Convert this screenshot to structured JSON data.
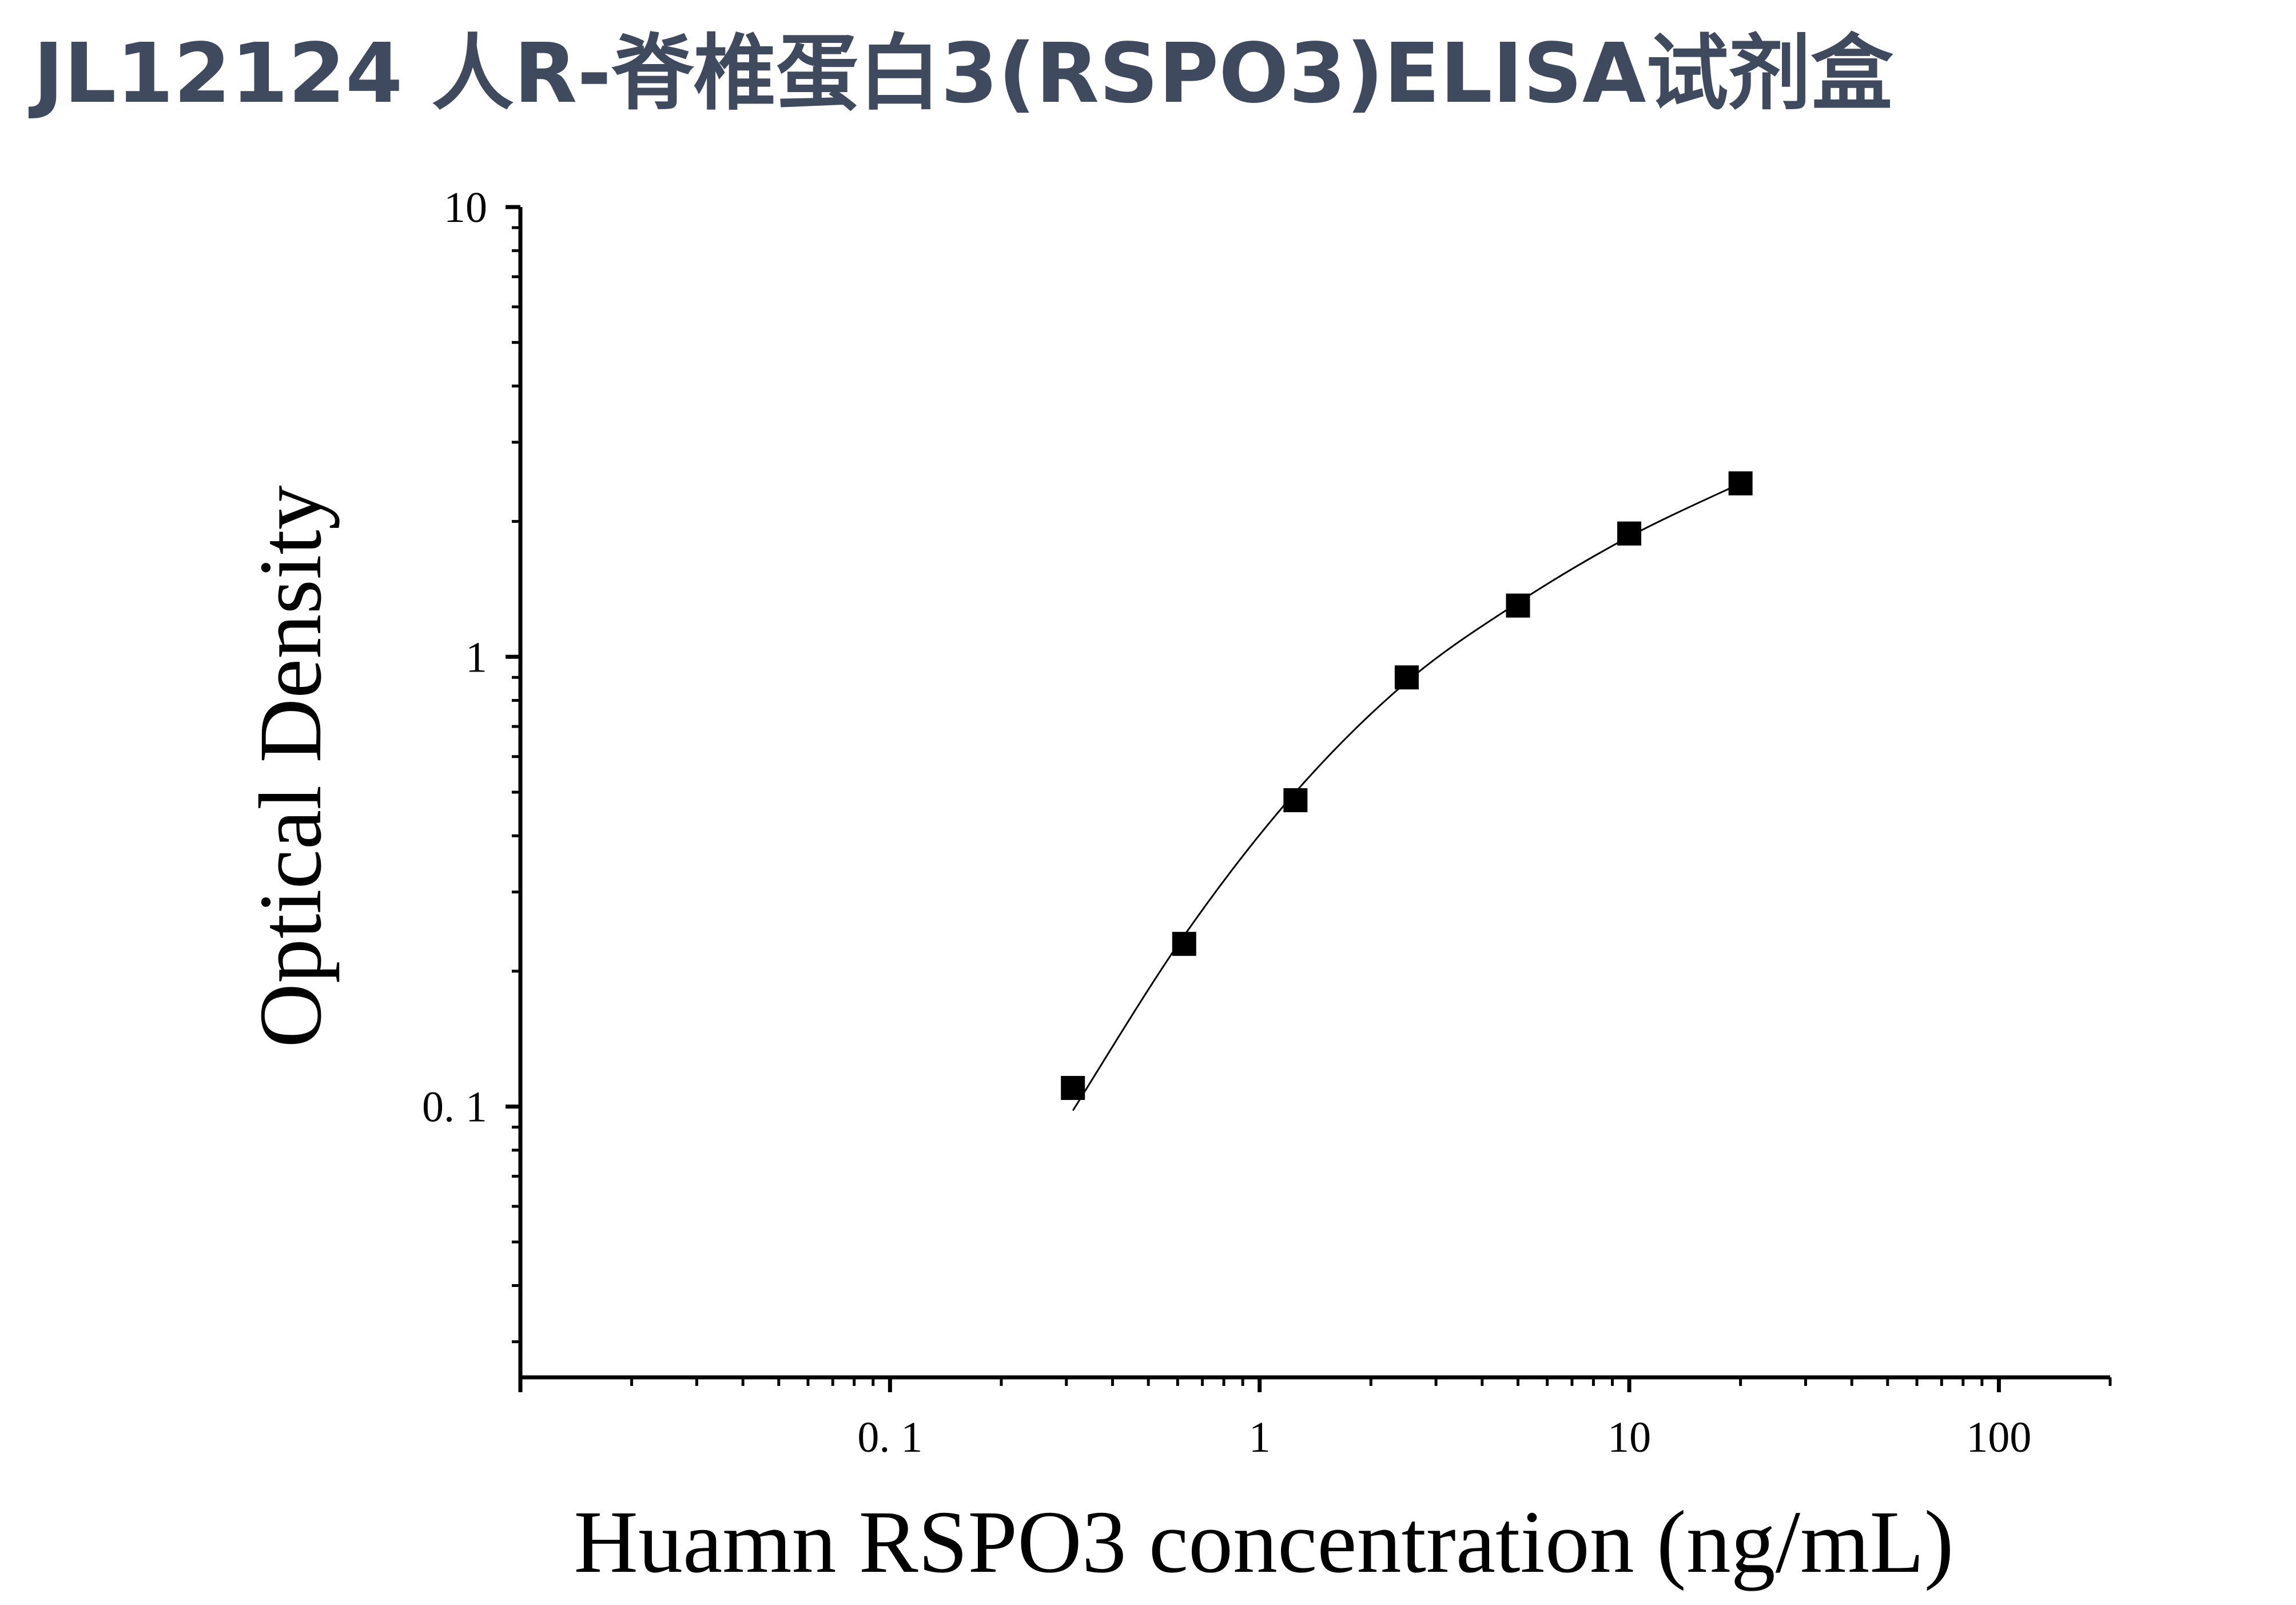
{
  "title": "JL12124 人R-脊椎蛋白3(RSPO3)ELISA试剂盒",
  "chart_data": {
    "type": "scatter",
    "title": "JL12124 人R-脊椎蛋白3(RSPO3)ELISA试剂盒",
    "xlabel": "Huamn RSPO3 concentration (ng/mL)",
    "ylabel": "Optical Density",
    "x_scale": "log",
    "y_scale": "log",
    "xlim": [
      0.01,
      200
    ],
    "ylim": [
      0.025,
      10
    ],
    "x_ticks": [
      {
        "value": 0.1,
        "label": "0. 1"
      },
      {
        "value": 1,
        "label": "1"
      },
      {
        "value": 10,
        "label": "10"
      },
      {
        "value": 100,
        "label": "100"
      }
    ],
    "y_ticks": [
      {
        "value": 0.1,
        "label": "0. 1"
      },
      {
        "value": 1,
        "label": "1"
      },
      {
        "value": 10,
        "label": "10"
      }
    ],
    "grid": false,
    "legend": "none",
    "series": [
      {
        "marker": "square",
        "color": "#000000",
        "x": [
          0.3125,
          0.625,
          1.25,
          2.5,
          5,
          10,
          20
        ],
        "y": [
          0.11,
          0.23,
          0.48,
          0.9,
          1.3,
          1.88,
          2.43
        ]
      }
    ],
    "fit_curve": {
      "type": "four-parameter logistic",
      "color": "#000000",
      "x": [
        0.3125,
        0.625,
        1.25,
        2.5,
        5,
        10,
        20
      ],
      "y": [
        0.098,
        0.24,
        0.5,
        0.88,
        1.32,
        1.85,
        2.43
      ]
    }
  }
}
